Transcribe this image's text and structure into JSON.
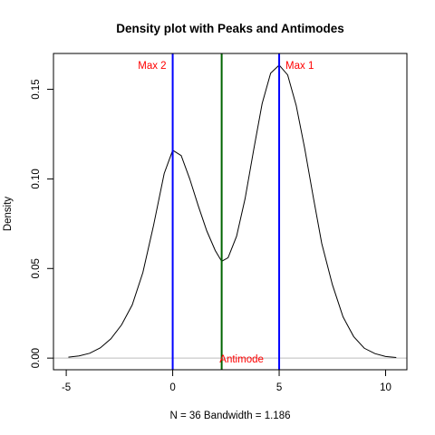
{
  "chart_data": {
    "type": "line",
    "title": "Density plot with Peaks and Antimodes",
    "xlabel": "N = 36   Bandwidth = 1.186",
    "ylabel": "Density",
    "xlim": [
      -5.6,
      11.0
    ],
    "ylim": [
      -0.0065,
      0.17
    ],
    "x_ticks": [
      -5,
      0,
      5,
      10
    ],
    "x_tick_labels": [
      "-5",
      "0",
      "5",
      "10"
    ],
    "y_ticks": [
      0.0,
      0.05,
      0.1,
      0.15
    ],
    "y_tick_labels": [
      "0.00",
      "0.05",
      "0.10",
      "0.15"
    ],
    "grid": false,
    "series": [
      {
        "color": "#000000",
        "x": [
          -4.9,
          -4.4,
          -3.9,
          -3.4,
          -2.9,
          -2.4,
          -1.9,
          -1.4,
          -0.9,
          -0.4,
          0.0,
          0.4,
          0.8,
          1.2,
          1.6,
          2.0,
          2.3,
          2.6,
          3.0,
          3.4,
          3.8,
          4.2,
          4.6,
          5.0,
          5.4,
          5.8,
          6.2,
          6.6,
          7.0,
          7.5,
          8.0,
          8.5,
          9.0,
          9.5,
          10.0,
          10.5
        ],
        "y": [
          0.0005,
          0.0012,
          0.0027,
          0.0057,
          0.0108,
          0.0186,
          0.0297,
          0.0478,
          0.074,
          0.103,
          0.116,
          0.113,
          0.1,
          0.085,
          0.071,
          0.06,
          0.054,
          0.056,
          0.068,
          0.089,
          0.116,
          0.142,
          0.159,
          0.1635,
          0.158,
          0.141,
          0.117,
          0.09,
          0.064,
          0.041,
          0.023,
          0.012,
          0.0055,
          0.0025,
          0.0009,
          0.0003
        ]
      }
    ],
    "baseline": {
      "y": 0.0,
      "color": "#bebebe"
    },
    "vlines": [
      {
        "x": 0.0,
        "color": "#0000ff",
        "label": "Max 2",
        "label_side": "left"
      },
      {
        "x": 2.3,
        "color": "#006400",
        "label": "Antimode",
        "label_side": "bottom"
      },
      {
        "x": 5.0,
        "color": "#0000ff",
        "label": "Max 1",
        "label_side": "right"
      }
    ],
    "annotation_color": "#ff0000"
  }
}
